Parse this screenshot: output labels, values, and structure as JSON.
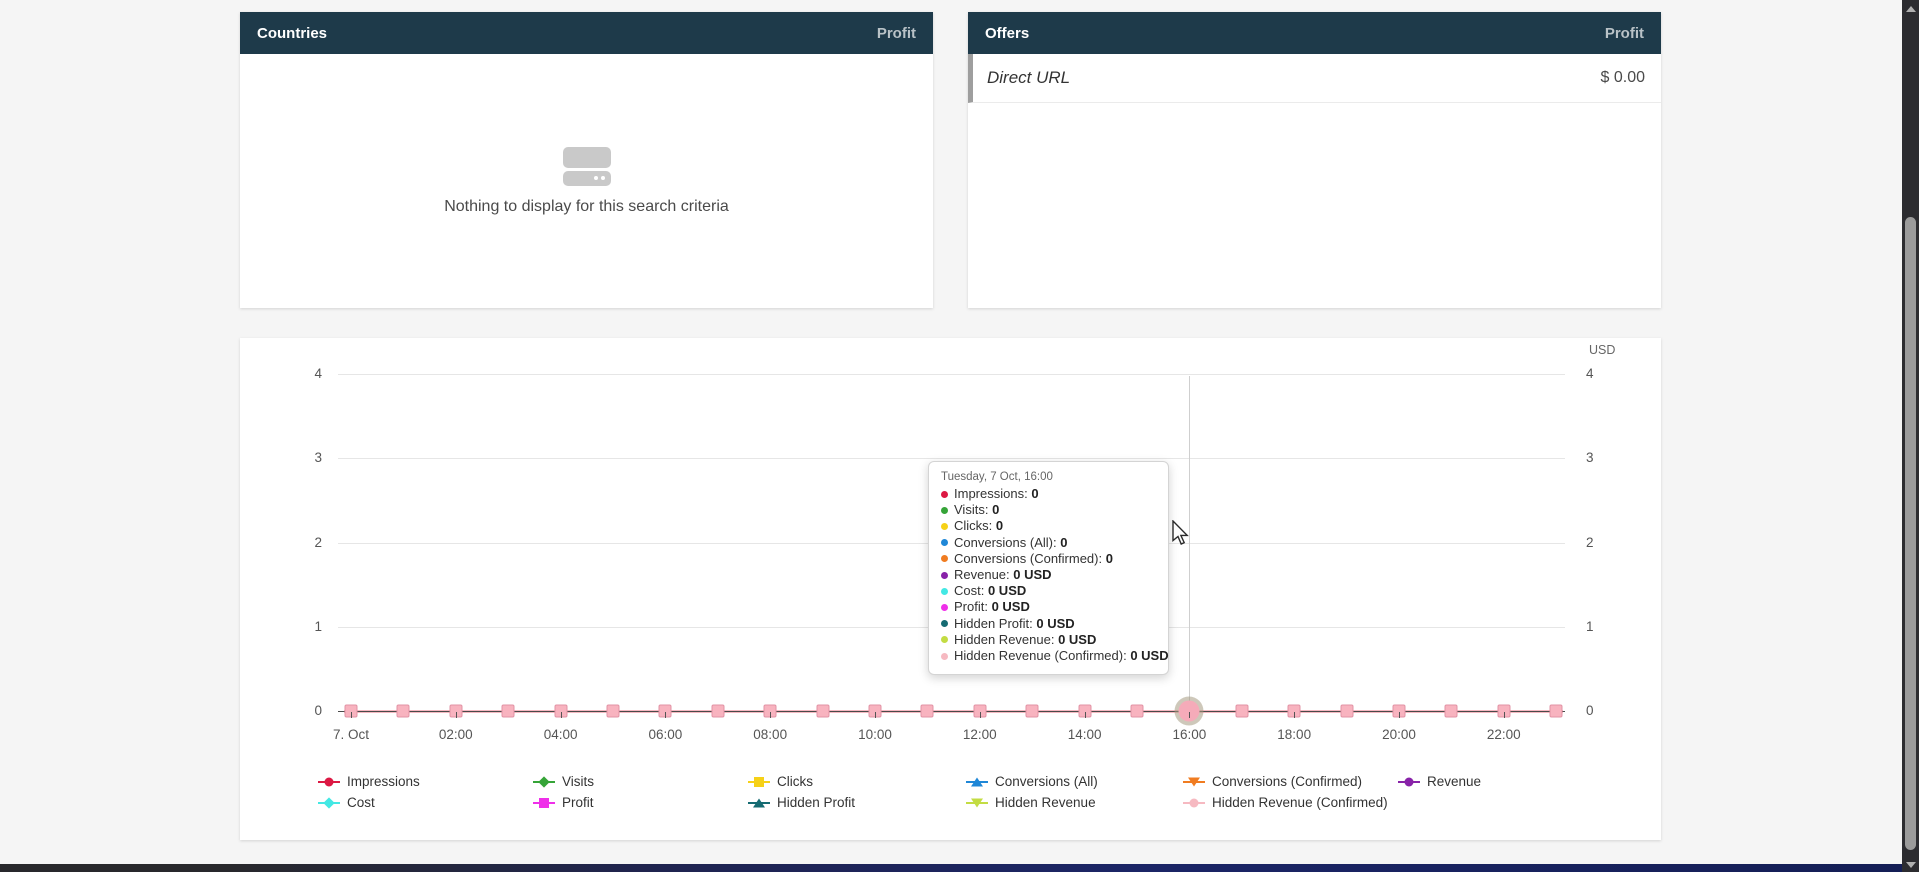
{
  "page": {
    "background": "#f5f5f5",
    "bottom_bar_gradient": [
      "#28282c",
      "#141e55"
    ],
    "scrollbar": {
      "track": "#2c2c30",
      "thumb": "#9b9b9b",
      "arrows": "#b0b0b0"
    }
  },
  "theme": {
    "panel_header_bg": "#1e3a4a",
    "panel_title_color": "#ffffff",
    "panel_metric_color": "#b9c2c7",
    "offer_row_accent": "#9e9e9e",
    "gridline_color": "#e6e6e6",
    "zero_line_color": "#f5b9c1"
  },
  "countries_panel": {
    "title": "Countries",
    "metric_label": "Profit",
    "empty_text": "Nothing to display for this search criteria"
  },
  "offers_panel": {
    "title": "Offers",
    "metric_label": "Profit",
    "rows": [
      {
        "name": "Direct URL",
        "value": "$ 0.00"
      }
    ]
  },
  "chart_data": {
    "type": "line",
    "title": "",
    "y_axis": {
      "unit": "USD",
      "min": 0,
      "max": 4,
      "ticks": [
        0,
        1,
        2,
        3,
        4
      ],
      "label_sides": [
        "left",
        "right"
      ]
    },
    "x_interval": "1 hour",
    "n_points": 24,
    "x_tick_labels": [
      "7. Oct",
      "02:00",
      "04:00",
      "06:00",
      "08:00",
      "10:00",
      "12:00",
      "14:00",
      "16:00",
      "18:00",
      "20:00",
      "22:00"
    ],
    "grid": true,
    "legend_position": "bottom",
    "hovered_point": {
      "index": 16,
      "label": "Tuesday, 7 Oct, 16:00"
    },
    "series": [
      {
        "name": "Impressions",
        "color": "#dc1843",
        "marker": "circle",
        "values": [
          0,
          0,
          0,
          0,
          0,
          0,
          0,
          0,
          0,
          0,
          0,
          0,
          0,
          0,
          0,
          0,
          0,
          0,
          0,
          0,
          0,
          0,
          0,
          0
        ]
      },
      {
        "name": "Visits",
        "color": "#36a438",
        "marker": "diamond",
        "values": [
          0,
          0,
          0,
          0,
          0,
          0,
          0,
          0,
          0,
          0,
          0,
          0,
          0,
          0,
          0,
          0,
          0,
          0,
          0,
          0,
          0,
          0,
          0,
          0
        ]
      },
      {
        "name": "Clicks",
        "color": "#f6d117",
        "marker": "square",
        "values": [
          0,
          0,
          0,
          0,
          0,
          0,
          0,
          0,
          0,
          0,
          0,
          0,
          0,
          0,
          0,
          0,
          0,
          0,
          0,
          0,
          0,
          0,
          0,
          0
        ]
      },
      {
        "name": "Conversions (All)",
        "color": "#1f87d7",
        "marker": "tri-up",
        "values": [
          0,
          0,
          0,
          0,
          0,
          0,
          0,
          0,
          0,
          0,
          0,
          0,
          0,
          0,
          0,
          0,
          0,
          0,
          0,
          0,
          0,
          0,
          0,
          0
        ]
      },
      {
        "name": "Conversions (Confirmed)",
        "color": "#f07c21",
        "marker": "tri-down",
        "values": [
          0,
          0,
          0,
          0,
          0,
          0,
          0,
          0,
          0,
          0,
          0,
          0,
          0,
          0,
          0,
          0,
          0,
          0,
          0,
          0,
          0,
          0,
          0,
          0
        ]
      },
      {
        "name": "Revenue",
        "color": "#8822a8",
        "marker": "circle",
        "values": [
          0,
          0,
          0,
          0,
          0,
          0,
          0,
          0,
          0,
          0,
          0,
          0,
          0,
          0,
          0,
          0,
          0,
          0,
          0,
          0,
          0,
          0,
          0,
          0
        ]
      },
      {
        "name": "Cost",
        "color": "#43e8e4",
        "marker": "diamond",
        "values": [
          0,
          0,
          0,
          0,
          0,
          0,
          0,
          0,
          0,
          0,
          0,
          0,
          0,
          0,
          0,
          0,
          0,
          0,
          0,
          0,
          0,
          0,
          0,
          0
        ]
      },
      {
        "name": "Profit",
        "color": "#ef2fe9",
        "marker": "square",
        "values": [
          0,
          0,
          0,
          0,
          0,
          0,
          0,
          0,
          0,
          0,
          0,
          0,
          0,
          0,
          0,
          0,
          0,
          0,
          0,
          0,
          0,
          0,
          0,
          0
        ]
      },
      {
        "name": "Hidden Profit",
        "color": "#156b72",
        "marker": "tri-up",
        "values": [
          0,
          0,
          0,
          0,
          0,
          0,
          0,
          0,
          0,
          0,
          0,
          0,
          0,
          0,
          0,
          0,
          0,
          0,
          0,
          0,
          0,
          0,
          0,
          0
        ]
      },
      {
        "name": "Hidden Revenue",
        "color": "#c3dc43",
        "marker": "tri-down",
        "values": [
          0,
          0,
          0,
          0,
          0,
          0,
          0,
          0,
          0,
          0,
          0,
          0,
          0,
          0,
          0,
          0,
          0,
          0,
          0,
          0,
          0,
          0,
          0,
          0
        ]
      },
      {
        "name": "Hidden Revenue (Confirmed)",
        "color": "#f6b9c1",
        "marker": "circle",
        "values": [
          0,
          0,
          0,
          0,
          0,
          0,
          0,
          0,
          0,
          0,
          0,
          0,
          0,
          0,
          0,
          0,
          0,
          0,
          0,
          0,
          0,
          0,
          0,
          0
        ]
      }
    ]
  },
  "tooltip": {
    "title": "Tuesday, 7 Oct, 16:00",
    "rows": [
      {
        "label": "Impressions",
        "value": "0",
        "color": "#dc1843"
      },
      {
        "label": "Visits",
        "value": "0",
        "color": "#36a438"
      },
      {
        "label": "Clicks",
        "value": "0",
        "color": "#f6d117"
      },
      {
        "label": "Conversions (All)",
        "value": "0",
        "color": "#1f87d7"
      },
      {
        "label": "Conversions (Confirmed)",
        "value": "0",
        "color": "#f07c21"
      },
      {
        "label": "Revenue",
        "value": "0 USD",
        "color": "#8822a8"
      },
      {
        "label": "Cost",
        "value": "0 USD",
        "color": "#43e8e4"
      },
      {
        "label": "Profit",
        "value": "0 USD",
        "color": "#ef2fe9"
      },
      {
        "label": "Hidden Profit",
        "value": "0 USD",
        "color": "#156b72"
      },
      {
        "label": "Hidden Revenue",
        "value": "0 USD",
        "color": "#c3dc43"
      },
      {
        "label": "Hidden Revenue (Confirmed)",
        "value": "0 USD",
        "color": "#f6b9c1"
      }
    ]
  }
}
